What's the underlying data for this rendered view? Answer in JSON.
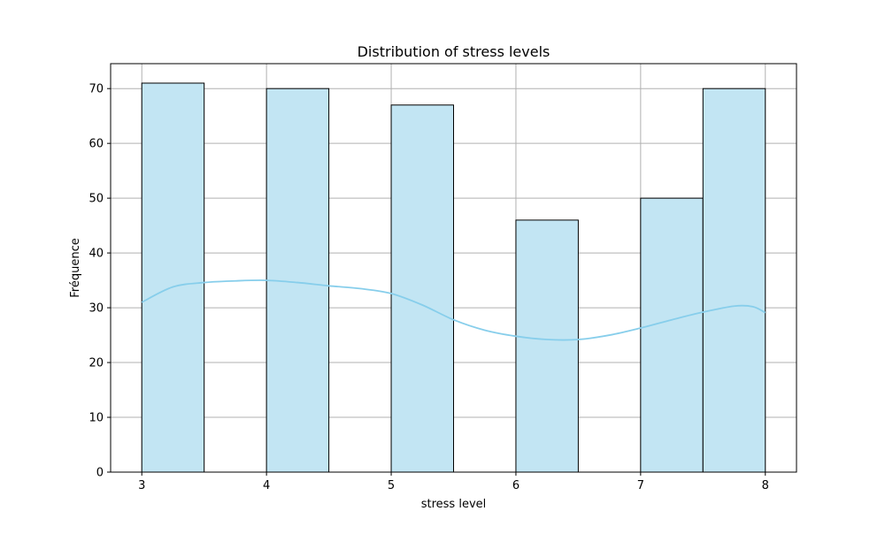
{
  "chart_data": {
    "type": "bar",
    "title": "Distribution of stress levels",
    "xlabel": "stress level",
    "ylabel": "Fréquence",
    "bins": [
      {
        "start": 3.0,
        "end": 3.5,
        "value": 71
      },
      {
        "start": 3.5,
        "end": 4.0,
        "value": 0
      },
      {
        "start": 4.0,
        "end": 4.5,
        "value": 70
      },
      {
        "start": 4.5,
        "end": 5.0,
        "value": 0
      },
      {
        "start": 5.0,
        "end": 5.5,
        "value": 67
      },
      {
        "start": 5.5,
        "end": 6.0,
        "value": 0
      },
      {
        "start": 6.0,
        "end": 6.5,
        "value": 46
      },
      {
        "start": 6.5,
        "end": 7.0,
        "value": 0
      },
      {
        "start": 7.0,
        "end": 7.5,
        "value": 50
      },
      {
        "start": 7.5,
        "end": 8.0,
        "value": 70
      }
    ],
    "kde": {
      "name": "",
      "x": [
        3.0,
        3.25,
        3.5,
        3.75,
        4.0,
        4.25,
        4.5,
        4.75,
        5.0,
        5.25,
        5.5,
        5.75,
        6.0,
        6.25,
        6.5,
        6.75,
        7.0,
        7.25,
        7.5,
        7.75,
        7.9,
        8.0
      ],
      "y": [
        31.0,
        33.8,
        34.6,
        34.9,
        35.0,
        34.6,
        34.0,
        33.5,
        32.6,
        30.5,
        27.8,
        25.9,
        24.8,
        24.2,
        24.2,
        25.0,
        26.3,
        27.8,
        29.2,
        30.3,
        30.2,
        29.1
      ]
    },
    "xticks": [
      3,
      4,
      5,
      6,
      7,
      8
    ],
    "yticks": [
      0,
      10,
      20,
      30,
      40,
      50,
      60,
      70
    ],
    "xlim": [
      2.75,
      8.25
    ],
    "ylim": [
      0,
      74.55
    ],
    "grid": true,
    "colors": {
      "bar_fill": "#c2e5f3",
      "bar_edge": "#000000",
      "kde_line": "#87ceeb",
      "grid": "#b0b0b0"
    }
  }
}
